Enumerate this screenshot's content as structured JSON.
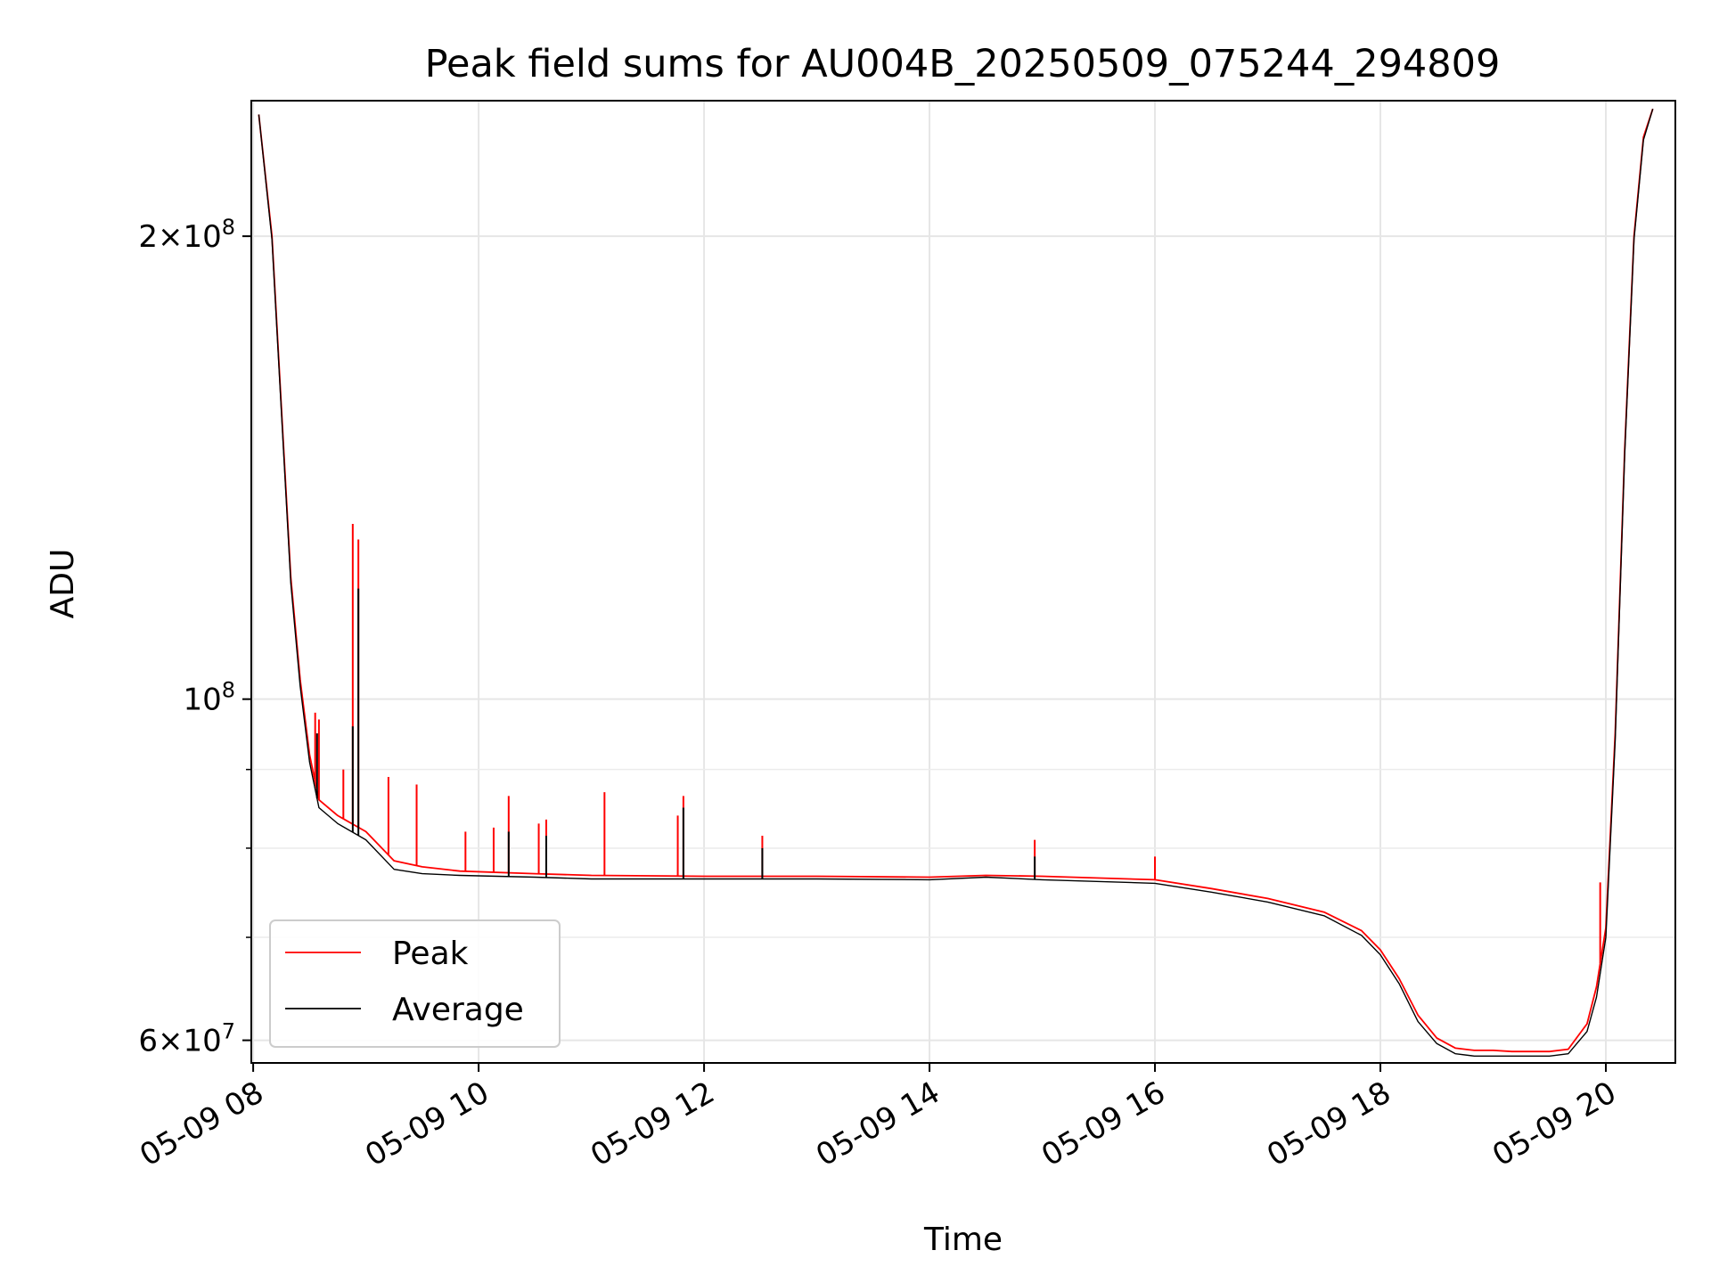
{
  "chart_data": {
    "type": "line",
    "title": "Peak field sums for AU004B_20250509_075244_294809",
    "xlabel": "Time",
    "ylabel": "ADU",
    "yscale": "log",
    "grid": true,
    "legend_position": "lower-left",
    "xlim": [
      "2025-05-09 07:59",
      "2025-05-09 20:37"
    ],
    "ylim": [
      58000000,
      245000000
    ],
    "x_tick_labels": [
      {
        "t": "2025-05-09 08:00",
        "label": "05-09 08"
      },
      {
        "t": "2025-05-09 10:00",
        "label": "05-09 10"
      },
      {
        "t": "2025-05-09 12:00",
        "label": "05-09 12"
      },
      {
        "t": "2025-05-09 14:00",
        "label": "05-09 14"
      },
      {
        "t": "2025-05-09 16:00",
        "label": "05-09 16"
      },
      {
        "t": "2025-05-09 18:00",
        "label": "05-09 18"
      },
      {
        "t": "2025-05-09 20:00",
        "label": "05-09 20"
      }
    ],
    "y_tick_labels": [
      {
        "value": 200000000,
        "mant": "2",
        "times": "×",
        "base": "10",
        "exp": "8"
      },
      {
        "value": 100000000,
        "mant": "",
        "times": "",
        "base": "10",
        "exp": "8"
      },
      {
        "value": 60000000,
        "mant": "6",
        "times": "×",
        "base": "10",
        "exp": "7"
      }
    ],
    "y_minor_ticks": [
      70000000,
      80000000,
      90000000
    ],
    "series": [
      {
        "name": "Peak",
        "color": "#ff0000",
        "x": [
          "2025-05-09 08:03",
          "2025-05-09 08:10",
          "2025-05-09 08:15",
          "2025-05-09 08:20",
          "2025-05-09 08:25",
          "2025-05-09 08:30",
          "2025-05-09 08:35",
          "2025-05-09 08:45",
          "2025-05-09 09:00",
          "2025-05-09 09:15",
          "2025-05-09 09:30",
          "2025-05-09 09:50",
          "2025-05-09 10:30",
          "2025-05-09 11:00",
          "2025-05-09 12:00",
          "2025-05-09 13:00",
          "2025-05-09 14:00",
          "2025-05-09 14:30",
          "2025-05-09 15:00",
          "2025-05-09 16:00",
          "2025-05-09 16:30",
          "2025-05-09 17:00",
          "2025-05-09 17:30",
          "2025-05-09 17:50",
          "2025-05-09 18:00",
          "2025-05-09 18:10",
          "2025-05-09 18:20",
          "2025-05-09 18:30",
          "2025-05-09 18:40",
          "2025-05-09 18:50",
          "2025-05-09 19:00",
          "2025-05-09 19:10",
          "2025-05-09 19:20",
          "2025-05-09 19:30",
          "2025-05-09 19:40",
          "2025-05-09 19:50",
          "2025-05-09 19:55",
          "2025-05-09 20:00",
          "2025-05-09 20:05",
          "2025-05-09 20:10",
          "2025-05-09 20:15",
          "2025-05-09 20:20",
          "2025-05-09 20:25"
        ],
        "y": [
          240000000,
          200000000,
          155000000,
          120000000,
          103000000,
          92000000,
          86000000,
          84000000,
          82000000,
          78500000,
          77800000,
          77300000,
          77000000,
          76800000,
          76700000,
          76700000,
          76600000,
          76800000,
          76700000,
          76300000,
          75300000,
          74200000,
          72700000,
          70700000,
          68700000,
          65800000,
          62300000,
          60200000,
          59300000,
          59100000,
          59100000,
          59000000,
          59000000,
          59000000,
          59200000,
          61500000,
          65000000,
          71000000,
          95000000,
          145000000,
          200000000,
          232000000,
          242000000
        ],
        "spikes": [
          {
            "t": "2025-05-09 08:53",
            "y": 130000000
          },
          {
            "t": "2025-05-09 08:56",
            "y": 127000000
          },
          {
            "t": "2025-05-09 08:48",
            "y": 90000000
          },
          {
            "t": "2025-05-09 08:33",
            "y": 98000000
          },
          {
            "t": "2025-05-09 08:35",
            "y": 97000000
          },
          {
            "t": "2025-05-09 09:12",
            "y": 89000000
          },
          {
            "t": "2025-05-09 09:27",
            "y": 88000000
          },
          {
            "t": "2025-05-09 09:53",
            "y": 82000000
          },
          {
            "t": "2025-05-09 10:08",
            "y": 82500000
          },
          {
            "t": "2025-05-09 10:16",
            "y": 86500000
          },
          {
            "t": "2025-05-09 10:32",
            "y": 83000000
          },
          {
            "t": "2025-05-09 10:36",
            "y": 83500000
          },
          {
            "t": "2025-05-09 11:07",
            "y": 87000000
          },
          {
            "t": "2025-05-09 11:46",
            "y": 84000000
          },
          {
            "t": "2025-05-09 11:49",
            "y": 86500000
          },
          {
            "t": "2025-05-09 12:31",
            "y": 81500000
          },
          {
            "t": "2025-05-09 14:56",
            "y": 81000000
          },
          {
            "t": "2025-05-09 16:00",
            "y": 79000000
          },
          {
            "t": "2025-05-09 19:57",
            "y": 76000000
          }
        ]
      },
      {
        "name": "Average",
        "color": "#000000",
        "x": [
          "2025-05-09 08:03",
          "2025-05-09 08:10",
          "2025-05-09 08:15",
          "2025-05-09 08:20",
          "2025-05-09 08:25",
          "2025-05-09 08:30",
          "2025-05-09 08:35",
          "2025-05-09 08:45",
          "2025-05-09 09:00",
          "2025-05-09 09:15",
          "2025-05-09 09:30",
          "2025-05-09 09:50",
          "2025-05-09 10:30",
          "2025-05-09 11:00",
          "2025-05-09 12:00",
          "2025-05-09 13:00",
          "2025-05-09 14:00",
          "2025-05-09 14:30",
          "2025-05-09 15:00",
          "2025-05-09 16:00",
          "2025-05-09 16:30",
          "2025-05-09 17:00",
          "2025-05-09 17:30",
          "2025-05-09 17:50",
          "2025-05-09 18:00",
          "2025-05-09 18:10",
          "2025-05-09 18:20",
          "2025-05-09 18:30",
          "2025-05-09 18:40",
          "2025-05-09 18:50",
          "2025-05-09 19:00",
          "2025-05-09 19:10",
          "2025-05-09 19:20",
          "2025-05-09 19:30",
          "2025-05-09 19:40",
          "2025-05-09 19:50",
          "2025-05-09 19:55",
          "2025-05-09 20:00",
          "2025-05-09 20:05",
          "2025-05-09 20:10",
          "2025-05-09 20:15",
          "2025-05-09 20:20",
          "2025-05-09 20:25"
        ],
        "y": [
          240000000,
          199000000,
          154000000,
          119000000,
          102000000,
          91000000,
          85000000,
          83000000,
          81000000,
          77500000,
          77000000,
          76800000,
          76600000,
          76400000,
          76400000,
          76400000,
          76300000,
          76600000,
          76300000,
          75900000,
          74900000,
          73800000,
          72300000,
          70200000,
          68200000,
          65300000,
          61700000,
          59700000,
          58800000,
          58600000,
          58600000,
          58600000,
          58600000,
          58600000,
          58800000,
          60800000,
          64000000,
          70000000,
          94000000,
          144000000,
          199000000,
          231000000,
          242000000
        ],
        "spikes": [
          {
            "t": "2025-05-09 08:56",
            "y": 118000000
          },
          {
            "t": "2025-05-09 08:53",
            "y": 96000000
          },
          {
            "t": "2025-05-09 08:34",
            "y": 95000000
          },
          {
            "t": "2025-05-09 11:49",
            "y": 85000000
          },
          {
            "t": "2025-05-09 14:56",
            "y": 79000000
          },
          {
            "t": "2025-05-09 12:31",
            "y": 80000000
          },
          {
            "t": "2025-05-09 10:36",
            "y": 81500000
          },
          {
            "t": "2025-05-09 10:16",
            "y": 82000000
          }
        ]
      }
    ]
  }
}
